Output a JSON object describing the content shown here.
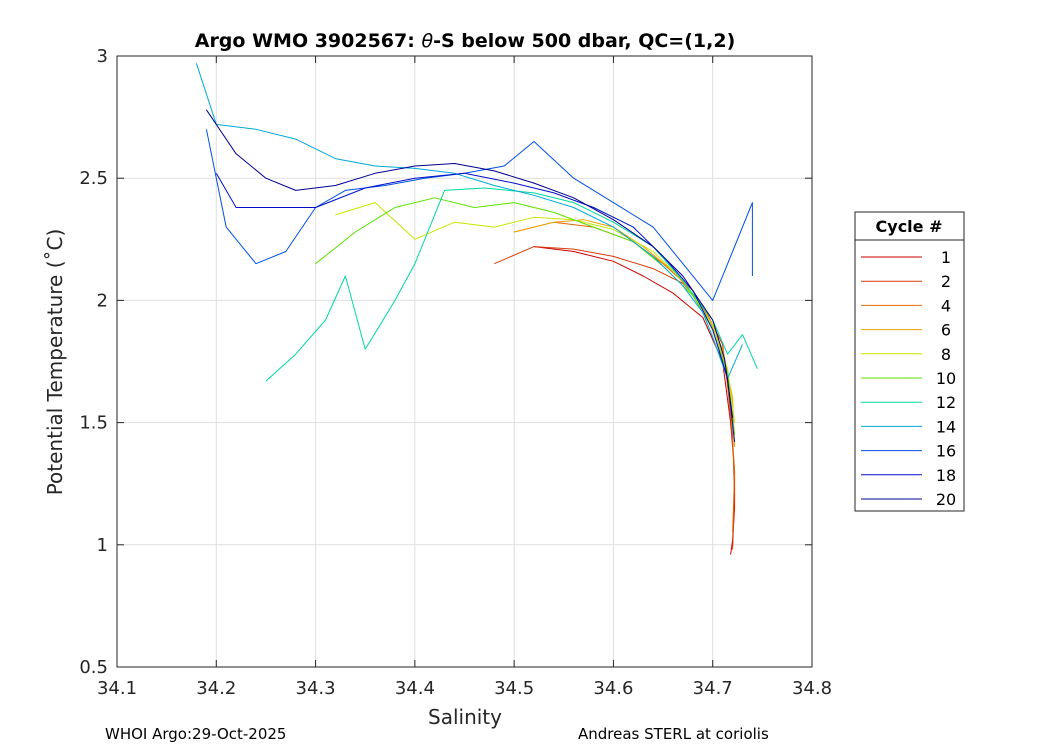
{
  "chart_data": {
    "type": "line",
    "title_prefix": "Argo WMO 3902567: ",
    "title_theta": "θ",
    "title_suffix": "-S below 500 dbar,  QC=(1,2)",
    "xlabel": "Salinity",
    "ylabel": "Potential Temperature (˚C)",
    "xlim": [
      34.1,
      34.8
    ],
    "ylim": [
      0.5,
      3.0
    ],
    "xticks": [
      34.1,
      34.2,
      34.3,
      34.4,
      34.5,
      34.6,
      34.7,
      34.8
    ],
    "xtick_labels": [
      "34.1",
      "34.2",
      "34.3",
      "34.4",
      "34.5",
      "34.6",
      "34.7",
      "34.8"
    ],
    "yticks": [
      0.5,
      1.0,
      1.5,
      2.0,
      2.5,
      3.0
    ],
    "ytick_labels": [
      "0.5",
      "1",
      "1.5",
      "2",
      "2.5",
      "3"
    ],
    "grid": true,
    "legend": {
      "title": "Cycle #",
      "placement": "right-outside",
      "entries": [
        {
          "label": "1",
          "color": "#cc0000"
        },
        {
          "label": "2",
          "color": "#d83a0a"
        },
        {
          "label": "4",
          "color": "#e06a00"
        },
        {
          "label": "6",
          "color": "#f0a000"
        },
        {
          "label": "8",
          "color": "#c8e600"
        },
        {
          "label": "10",
          "color": "#5ee000"
        },
        {
          "label": "12",
          "color": "#00d8a0"
        },
        {
          "label": "14",
          "color": "#00a8d8"
        },
        {
          "label": "16",
          "color": "#0050e0"
        },
        {
          "label": "18",
          "color": "#0010c8"
        },
        {
          "label": "20",
          "color": "#000090"
        }
      ]
    },
    "series": [
      {
        "name": "1",
        "color": "#cc0000",
        "x": [
          34.52,
          34.56,
          34.6,
          34.63,
          34.66,
          34.69,
          34.71,
          34.718,
          34.722,
          34.722,
          34.72,
          34.718
        ],
        "y": [
          2.22,
          2.2,
          2.16,
          2.1,
          2.03,
          1.93,
          1.75,
          1.5,
          1.3,
          1.15,
          1.02,
          0.96
        ]
      },
      {
        "name": "2",
        "color": "#d83a0a",
        "x": [
          34.48,
          34.52,
          34.56,
          34.6,
          34.64,
          34.67,
          34.69,
          34.71,
          34.715,
          34.72,
          34.722,
          34.72
        ],
        "y": [
          2.15,
          2.22,
          2.21,
          2.18,
          2.13,
          2.07,
          1.98,
          1.82,
          1.65,
          1.45,
          1.2,
          0.98
        ]
      },
      {
        "name": "4",
        "color": "#e06a00",
        "x": [
          34.5,
          34.54,
          34.58,
          34.62,
          34.65,
          34.68,
          34.7,
          34.712,
          34.718,
          34.722,
          34.72
        ],
        "y": [
          2.28,
          2.32,
          2.3,
          2.24,
          2.15,
          2.04,
          1.9,
          1.75,
          1.55,
          1.3,
          1.05
        ]
      },
      {
        "name": "6",
        "color": "#f0a000",
        "x": [
          34.5,
          34.54,
          34.57,
          34.6,
          34.63,
          34.66,
          34.69,
          34.71,
          34.72,
          34.722
        ],
        "y": [
          2.28,
          2.32,
          2.33,
          2.3,
          2.22,
          2.12,
          1.98,
          1.8,
          1.6,
          1.4
        ]
      },
      {
        "name": "8",
        "color": "#c8e600",
        "x": [
          34.32,
          34.36,
          34.4,
          34.44,
          34.48,
          34.52,
          34.56,
          34.6,
          34.64,
          34.67,
          34.7,
          34.715,
          34.722
        ],
        "y": [
          2.35,
          2.4,
          2.25,
          2.32,
          2.3,
          2.34,
          2.33,
          2.29,
          2.2,
          2.08,
          1.9,
          1.72,
          1.5
        ]
      },
      {
        "name": "10",
        "color": "#5ee000",
        "x": [
          34.3,
          34.34,
          34.38,
          34.42,
          34.46,
          34.5,
          34.54,
          34.58,
          34.62,
          34.65,
          34.68,
          34.7,
          34.715,
          34.722
        ],
        "y": [
          2.15,
          2.28,
          2.38,
          2.42,
          2.38,
          2.4,
          2.36,
          2.3,
          2.24,
          2.14,
          2.02,
          1.88,
          1.7,
          1.45
        ]
      },
      {
        "name": "12",
        "color": "#00d8a0",
        "x": [
          34.25,
          34.28,
          34.31,
          34.33,
          34.35,
          34.38,
          34.4,
          34.43,
          34.47,
          34.52,
          34.56,
          34.6,
          34.64,
          34.67,
          34.7,
          34.715,
          34.73,
          34.745
        ],
        "y": [
          1.67,
          1.78,
          1.92,
          2.1,
          1.8,
          2.0,
          2.15,
          2.45,
          2.46,
          2.44,
          2.4,
          2.32,
          2.22,
          2.08,
          1.92,
          1.78,
          1.86,
          1.72
        ]
      },
      {
        "name": "14",
        "color": "#00a8d8",
        "x": [
          34.18,
          34.2,
          34.24,
          34.28,
          34.32,
          34.36,
          34.4,
          34.44,
          34.48,
          34.52,
          34.56,
          34.6,
          34.64,
          34.67,
          34.69,
          34.7,
          34.715,
          34.73
        ],
        "y": [
          2.97,
          2.72,
          2.7,
          2.66,
          2.58,
          2.55,
          2.54,
          2.52,
          2.47,
          2.43,
          2.38,
          2.3,
          2.18,
          2.06,
          1.95,
          1.85,
          1.68,
          1.82
        ]
      },
      {
        "name": "16",
        "color": "#0050e0",
        "x": [
          34.19,
          34.21,
          34.24,
          34.27,
          34.3,
          34.33,
          34.37,
          34.41,
          34.45,
          34.49,
          34.52,
          34.56,
          34.6,
          34.64,
          34.67,
          34.7,
          34.72,
          34.74,
          34.74
        ],
        "y": [
          2.7,
          2.3,
          2.15,
          2.2,
          2.38,
          2.45,
          2.47,
          2.5,
          2.52,
          2.55,
          2.65,
          2.5,
          2.4,
          2.3,
          2.15,
          2.0,
          2.2,
          2.4,
          2.1
        ]
      },
      {
        "name": "18",
        "color": "#0010c8",
        "x": [
          34.2,
          34.22,
          34.26,
          34.3,
          34.35,
          34.4,
          34.45,
          34.5,
          34.54,
          34.58,
          34.62,
          34.65,
          34.68,
          34.7,
          34.715,
          34.722
        ],
        "y": [
          2.52,
          2.38,
          2.38,
          2.38,
          2.46,
          2.5,
          2.52,
          2.48,
          2.44,
          2.38,
          2.3,
          2.18,
          2.04,
          1.88,
          1.68,
          1.42
        ]
      },
      {
        "name": "20",
        "color": "#000090",
        "x": [
          34.19,
          34.22,
          34.25,
          34.28,
          34.32,
          34.36,
          34.4,
          34.44,
          34.48,
          34.52,
          34.56,
          34.6,
          34.64,
          34.67,
          34.7,
          34.712,
          34.72
        ],
        "y": [
          2.78,
          2.6,
          2.5,
          2.45,
          2.47,
          2.52,
          2.55,
          2.56,
          2.53,
          2.48,
          2.42,
          2.33,
          2.22,
          2.1,
          1.92,
          1.76,
          1.52
        ]
      }
    ]
  },
  "footer": {
    "left": "WHOI Argo:29-Oct-2025",
    "right": "Andreas STERL at coriolis"
  }
}
